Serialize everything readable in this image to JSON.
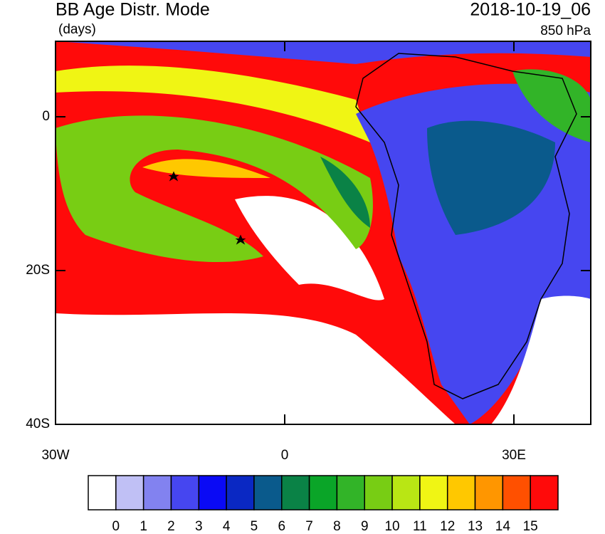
{
  "header": {
    "title": "BB Age Distr. Mode",
    "units": "(days)",
    "datetime": "2018-10-19_06",
    "level": "850 hPa"
  },
  "map": {
    "lat_labels": [
      "0",
      "20S",
      "40S"
    ],
    "lon_labels": [
      "30W",
      "0",
      "30E"
    ]
  },
  "colorbar": {
    "colors": [
      "#ffffff",
      "#c0c0f5",
      "#8282f0",
      "#4646f0",
      "#0a0af5",
      "#0a28c3",
      "#0a5a8c",
      "#0a8246",
      "#0aa528",
      "#32b428",
      "#78cd14",
      "#b9e614",
      "#f0f514",
      "#ffc800",
      "#ff9600",
      "#ff5000",
      "#ff0a0a"
    ],
    "labels": [
      "0",
      "1",
      "2",
      "3",
      "4",
      "5",
      "6",
      "7",
      "8",
      "9",
      "10",
      "11",
      "12",
      "13",
      "14",
      "15"
    ]
  }
}
